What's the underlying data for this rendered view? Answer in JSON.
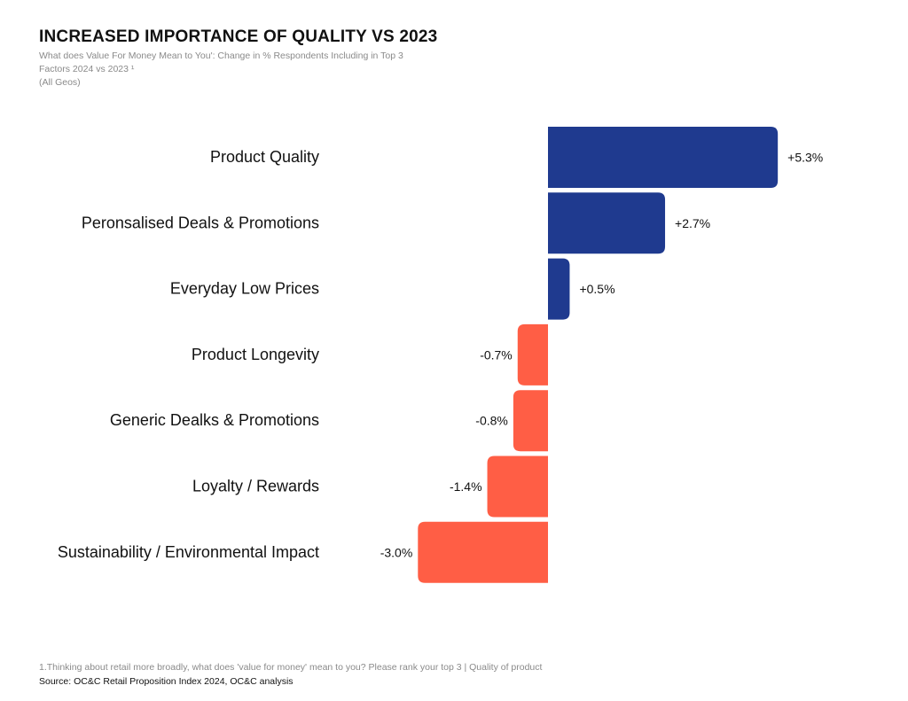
{
  "chart_data": {
    "type": "bar",
    "orientation": "horizontal",
    "title": "INCREASED IMPORTANCE OF QUALITY VS 2023",
    "subtitle_lines": [
      "What does Value For Money Mean to You': Change in % Respondents Including in Top 3",
      "Factors 2024 vs 2023 ¹",
      "(All Geos)"
    ],
    "categories": [
      "Product Quality",
      "Peronsalised Deals & Promotions",
      "Everyday Low Prices",
      "Product Longevity",
      "Generic Dealks & Promotions",
      "Loyalty / Rewards",
      "Sustainability / Environmental Impact"
    ],
    "values": [
      5.3,
      2.7,
      0.5,
      -0.7,
      -0.8,
      -1.4,
      -3.0
    ],
    "data_labels": [
      "+5.3%",
      "+2.7%",
      "+0.5%",
      "-0.7%",
      "-0.8%",
      "-1.4%",
      "-3.0%"
    ],
    "colors": {
      "positive": "#1f3a8f",
      "negative": "#ff5e45"
    },
    "grid": false,
    "legend": "none"
  },
  "footnote": "1.Thinking about retail more broadly, what does 'value for money' mean to you? Please rank your top 3 | Quality of product",
  "source": "Source: OC&C Retail Proposition Index 2024, OC&C analysis"
}
